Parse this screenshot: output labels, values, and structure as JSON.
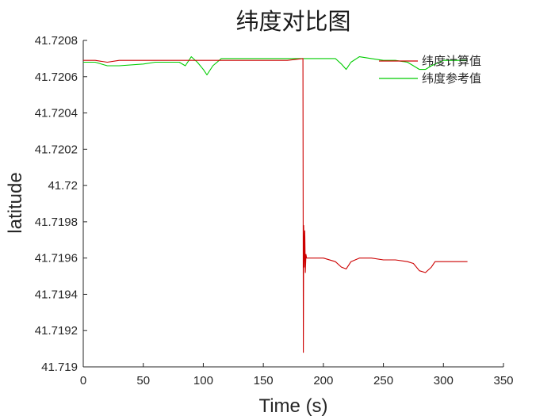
{
  "chart_data": {
    "type": "line",
    "title": "纬度对比图",
    "xlabel": "Time (s)",
    "ylabel": "latitude",
    "xlim": [
      0,
      350
    ],
    "ylim": [
      41.719,
      41.7208
    ],
    "xticks": [
      0,
      50,
      100,
      150,
      200,
      250,
      300,
      350
    ],
    "xtick_labels": [
      "0",
      "50",
      "100",
      "150",
      "200",
      "250",
      "300",
      "350"
    ],
    "yticks": [
      41.719,
      41.7192,
      41.7194,
      41.7196,
      41.7198,
      41.72,
      41.7202,
      41.7204,
      41.7206,
      41.7208
    ],
    "ytick_labels": [
      "41.719",
      "41.7192",
      "41.7194",
      "41.7196",
      "41.7198",
      "41.72",
      "41.7202",
      "41.7204",
      "41.7206",
      "41.7208"
    ],
    "grid": false,
    "legend_position": "top-right",
    "series": [
      {
        "name": "纬度计算值",
        "color": "#cc0000",
        "x": [
          0,
          10,
          20,
          30,
          50,
          60,
          80,
          90,
          100,
          103,
          110,
          118,
          130,
          150,
          170,
          183,
          183.3,
          183.6,
          184,
          184.5,
          185,
          185.5,
          186,
          190,
          200,
          210,
          215,
          219,
          223,
          230,
          240,
          250,
          260,
          270,
          275,
          280,
          285,
          290,
          293,
          300,
          320
        ],
        "y": [
          41.72069,
          41.72069,
          41.72068,
          41.72069,
          41.72069,
          41.72069,
          41.72069,
          41.72069,
          41.72069,
          41.72069,
          41.72069,
          41.72069,
          41.72069,
          41.72069,
          41.72069,
          41.7207,
          41.71908,
          41.71978,
          41.71955,
          41.71975,
          41.71952,
          41.71962,
          41.7196,
          41.7196,
          41.7196,
          41.71958,
          41.71955,
          41.71954,
          41.71958,
          41.7196,
          41.7196,
          41.71959,
          41.71959,
          41.71958,
          41.71957,
          41.71953,
          41.71952,
          41.71955,
          41.71958,
          41.71958,
          41.71958
        ]
      },
      {
        "name": "纬度参考值",
        "color": "#00cc00",
        "x": [
          0,
          10,
          20,
          30,
          50,
          60,
          80,
          85,
          90,
          95,
          100,
          103,
          108,
          115,
          120,
          130,
          150,
          170,
          190,
          200,
          210,
          215,
          219,
          223,
          230,
          240,
          250,
          260,
          270,
          275,
          280,
          285,
          290,
          300,
          320
        ],
        "y": [
          41.72068,
          41.72068,
          41.72066,
          41.72066,
          41.72067,
          41.72068,
          41.72068,
          41.72066,
          41.72071,
          41.72068,
          41.72064,
          41.72061,
          41.72066,
          41.7207,
          41.7207,
          41.7207,
          41.7207,
          41.7207,
          41.7207,
          41.7207,
          41.7207,
          41.72067,
          41.72064,
          41.72068,
          41.72071,
          41.7207,
          41.72069,
          41.72069,
          41.72068,
          41.72066,
          41.72064,
          41.72064,
          41.72066,
          41.72069,
          41.72069
        ]
      }
    ]
  }
}
